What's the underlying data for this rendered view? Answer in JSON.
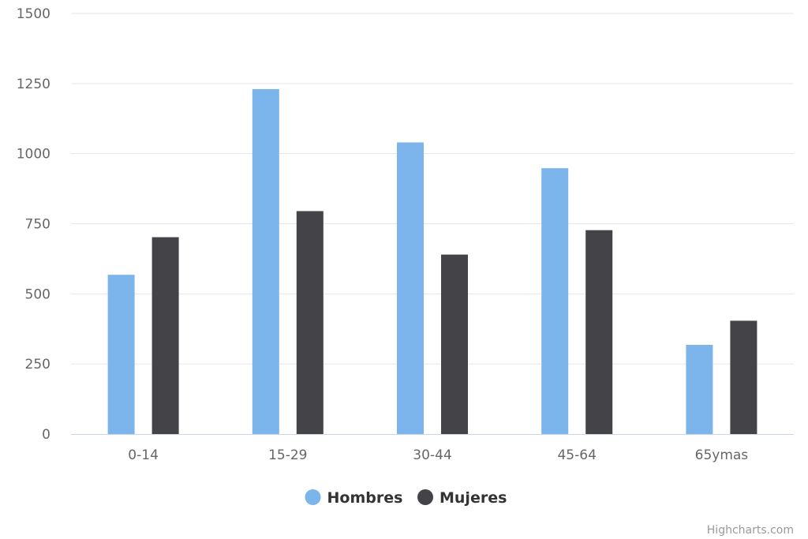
{
  "chart_data": {
    "type": "bar",
    "title": "",
    "xlabel": "",
    "ylabel": "",
    "categories": [
      "0-14",
      "15-29",
      "30-44",
      "45-64",
      "65ymas"
    ],
    "series": [
      {
        "name": "Hombres",
        "color": "#7cb5ec",
        "values": [
          568,
          1230,
          1040,
          948,
          318
        ]
      },
      {
        "name": "Mujeres",
        "color": "#434348",
        "values": [
          702,
          795,
          640,
          727,
          404
        ]
      }
    ],
    "ylim": [
      0,
      1500
    ],
    "yticks": [
      0,
      250,
      500,
      750,
      1000,
      1250,
      1500
    ],
    "grid": true,
    "legend_position": "bottom-center"
  },
  "credits": "Highcharts.com"
}
